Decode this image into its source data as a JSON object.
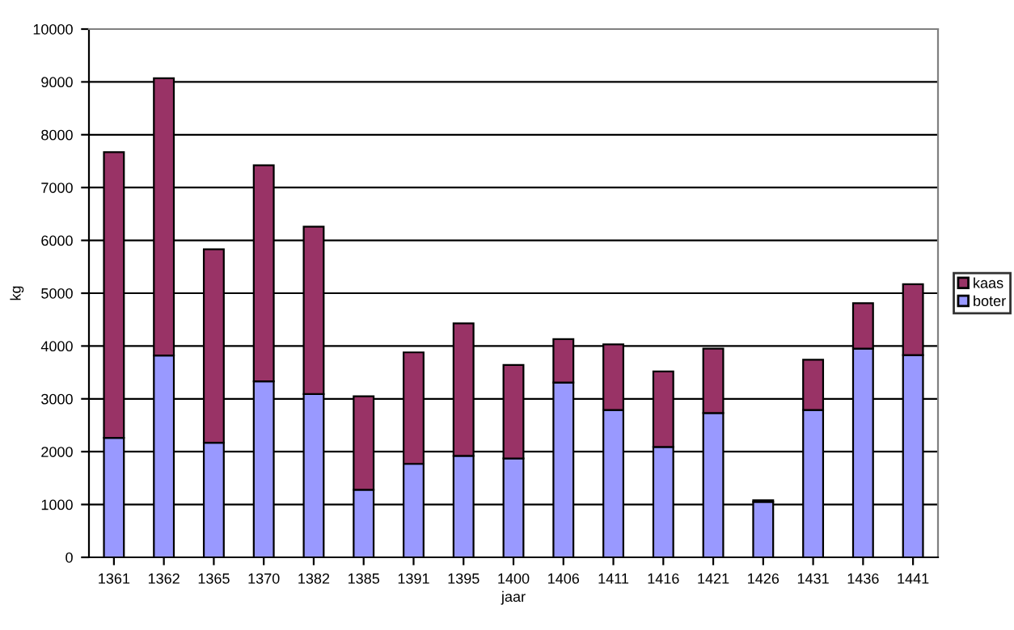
{
  "chart_data": {
    "type": "bar",
    "stacked": true,
    "xlabel": "jaar",
    "ylabel": "kg",
    "categories": [
      "1361",
      "1362",
      "1365",
      "1370",
      "1382",
      "1385",
      "1391",
      "1395",
      "1400",
      "1406",
      "1411",
      "1416",
      "1421",
      "1426",
      "1431",
      "1436",
      "1441"
    ],
    "series": [
      {
        "name": "boter",
        "color": "#9999ff",
        "values": [
          2260,
          3820,
          2170,
          3330,
          3090,
          1280,
          1770,
          1920,
          1870,
          3310,
          2790,
          2090,
          2730,
          1050,
          2790,
          3950,
          3830
        ]
      },
      {
        "name": "kaas",
        "color": "#993366",
        "values": [
          5410,
          5250,
          3660,
          4090,
          3170,
          1770,
          2110,
          2510,
          1770,
          820,
          1240,
          1430,
          1220,
          30,
          950,
          860,
          1340
        ]
      }
    ],
    "ylim": [
      0,
      10000
    ],
    "yticks": [
      0,
      1000,
      2000,
      3000,
      4000,
      5000,
      6000,
      7000,
      8000,
      9000,
      10000
    ],
    "grid": "y",
    "legend": "right"
  }
}
